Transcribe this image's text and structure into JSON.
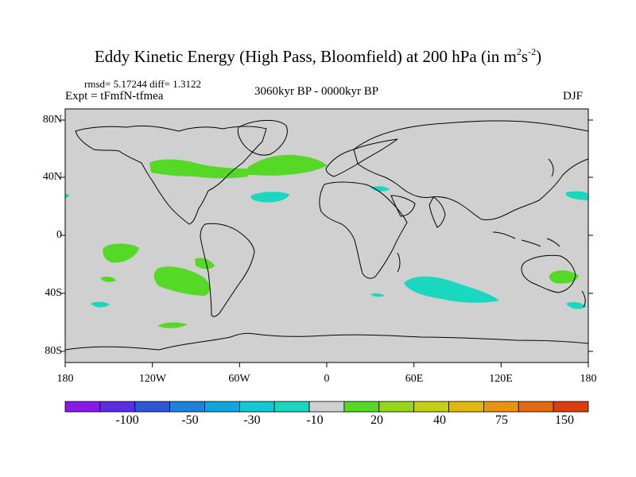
{
  "title": {
    "main": "Eddy Kinetic Energy (High Pass, Bloomfield) at 200 hPa (in m",
    "sup1": "2",
    "mid": "s",
    "sup2": "-2",
    "close": ")"
  },
  "stats": "rmsd= 5.17244 diff= 1.3122",
  "experiment": "Expt = tFmfN-tfmea",
  "period": "3060kyr BP - 0000kyr BP",
  "season": "DJF",
  "lat_labels": [
    "80N",
    "40N",
    "0",
    "40S",
    "80S"
  ],
  "lon_labels": [
    "180",
    "120W",
    "60W",
    "0",
    "60E",
    "120E",
    "180"
  ],
  "colorbar": {
    "labels": [
      "-100",
      "-50",
      "-30",
      "-10",
      "20",
      "40",
      "75",
      "150"
    ],
    "colors": [
      "#8a18e6",
      "#5b2ee0",
      "#2f55d8",
      "#1d82da",
      "#13a6dc",
      "#11c7d8",
      "#1ad8c0",
      "#d0d0d0",
      "#55d826",
      "#95d61a",
      "#c5d014",
      "#e2b80e",
      "#e89410",
      "#e26a10",
      "#dc3e10"
    ]
  },
  "colors": {
    "land_sea_default": "#d0d0d0",
    "positive_anomaly": "#55d826",
    "negative_anomaly": "#1ad8c0"
  }
}
